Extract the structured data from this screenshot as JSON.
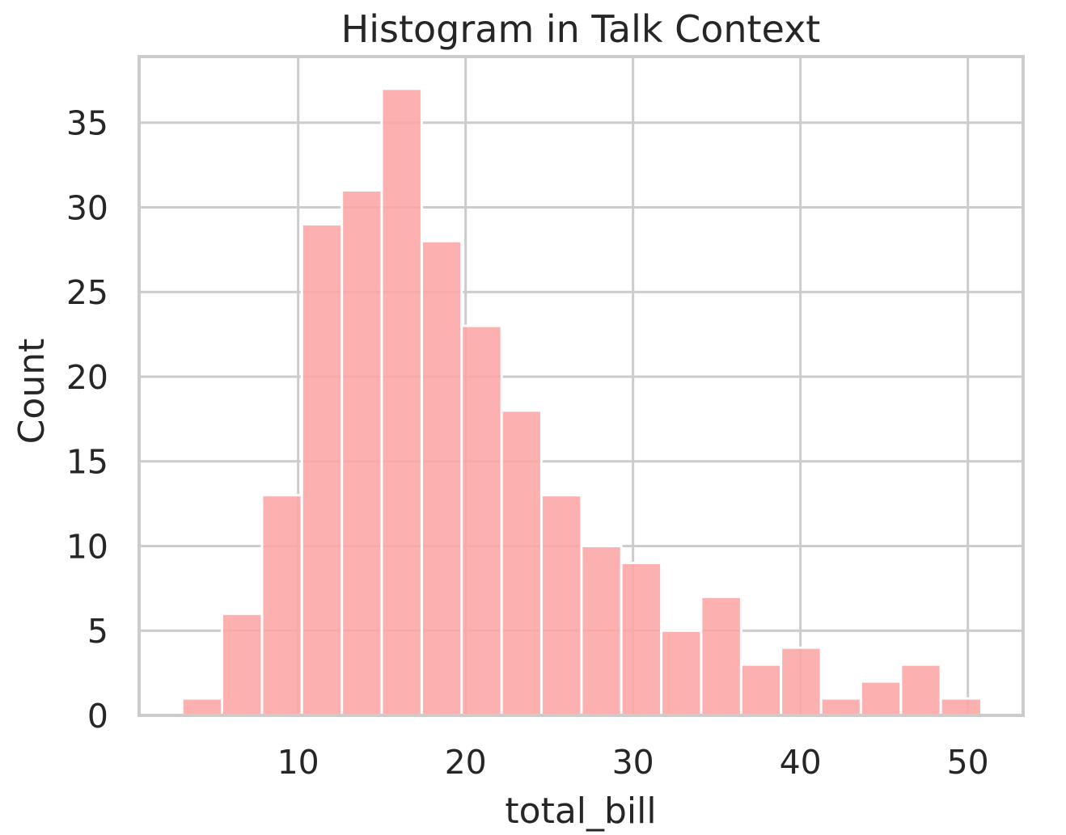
{
  "chart_data": {
    "type": "bar",
    "title": "Histogram in Talk Context",
    "xlabel": "total_bill",
    "ylabel": "Count",
    "bar_color": "#fca5a5",
    "bar_opacity": 0.88,
    "grid": true,
    "xlim": [
      0.5,
      53.3
    ],
    "ylim": [
      0,
      38.9
    ],
    "xticks": [
      10,
      20,
      30,
      40,
      50
    ],
    "yticks": [
      0,
      5,
      10,
      15,
      20,
      25,
      30,
      35
    ],
    "bins": [
      {
        "x0": 3.07,
        "x1": 5.45,
        "count": 1
      },
      {
        "x0": 5.45,
        "x1": 7.84,
        "count": 6
      },
      {
        "x0": 7.84,
        "x1": 10.22,
        "count": 13
      },
      {
        "x0": 10.22,
        "x1": 12.61,
        "count": 29
      },
      {
        "x0": 12.61,
        "x1": 14.99,
        "count": 31
      },
      {
        "x0": 14.99,
        "x1": 17.38,
        "count": 37
      },
      {
        "x0": 17.38,
        "x1": 19.76,
        "count": 28
      },
      {
        "x0": 19.76,
        "x1": 22.15,
        "count": 23
      },
      {
        "x0": 22.15,
        "x1": 24.53,
        "count": 18
      },
      {
        "x0": 24.53,
        "x1": 26.92,
        "count": 13
      },
      {
        "x0": 26.92,
        "x1": 29.3,
        "count": 10
      },
      {
        "x0": 29.3,
        "x1": 31.69,
        "count": 9
      },
      {
        "x0": 31.69,
        "x1": 34.07,
        "count": 5
      },
      {
        "x0": 34.07,
        "x1": 36.46,
        "count": 7
      },
      {
        "x0": 36.46,
        "x1": 38.84,
        "count": 3
      },
      {
        "x0": 38.84,
        "x1": 41.23,
        "count": 4
      },
      {
        "x0": 41.23,
        "x1": 43.61,
        "count": 1
      },
      {
        "x0": 43.61,
        "x1": 46.0,
        "count": 2
      },
      {
        "x0": 46.0,
        "x1": 48.38,
        "count": 3
      },
      {
        "x0": 48.38,
        "x1": 50.81,
        "count": 1
      }
    ]
  }
}
